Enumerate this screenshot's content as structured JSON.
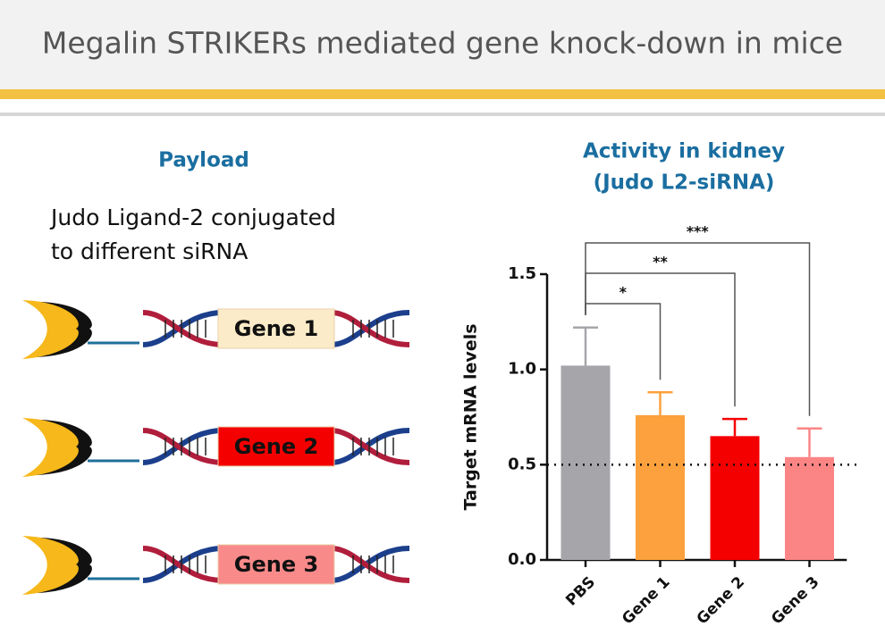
{
  "title": "Megalin STRIKERs mediated gene knock-down in mice",
  "payload": {
    "heading": "Payload",
    "description_lines": [
      "Judo Ligand-2 conjugated",
      "to  different siRNA"
    ],
    "genes": [
      {
        "label": "Gene 1",
        "color": "#fcebc8"
      },
      {
        "label": "Gene 2",
        "color": "#f40000"
      },
      {
        "label": "Gene 3",
        "color": "#f98a8a"
      }
    ]
  },
  "chart_data": {
    "type": "bar",
    "title_lines": [
      "Activity in kidney",
      "(Judo L2-siRNA)"
    ],
    "y_label": "Target  mRNA levels",
    "categories": [
      "PBS",
      "Gene 1",
      "Gene 2",
      "Gene 3"
    ],
    "values": [
      1.02,
      0.76,
      0.65,
      0.54
    ],
    "errors": [
      0.2,
      0.12,
      0.09,
      0.15
    ],
    "colors": [
      "#a6a6aa",
      "#fca13d",
      "#f50000",
      "#fb8585"
    ],
    "ylim": [
      0,
      1.5
    ],
    "yticks": [
      {
        "value": 0,
        "label": "0.0"
      },
      {
        "value": 0.5,
        "label": "0.5"
      },
      {
        "value": 1,
        "label": "1.0"
      },
      {
        "value": 1.5,
        "label": "1.5"
      }
    ],
    "reference_line": 0.5,
    "significance": [
      "*",
      "**",
      "***"
    ]
  }
}
